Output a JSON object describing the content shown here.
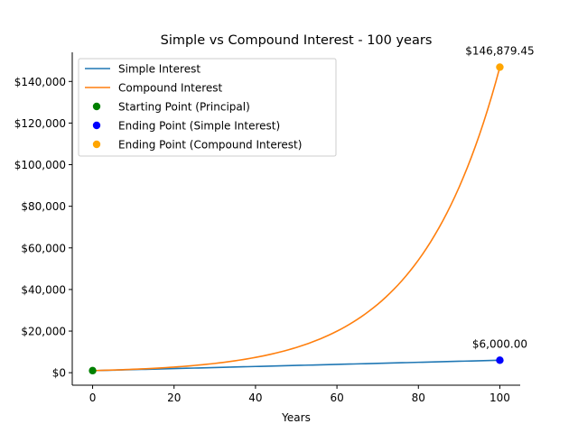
{
  "chart_data": {
    "type": "line",
    "title": "Simple vs Compound Interest - 100 years",
    "xlabel": "Years",
    "ylabel": "",
    "xlim": [
      -5,
      105
    ],
    "ylim": [
      -6000,
      154000
    ],
    "xticks": [
      0,
      20,
      40,
      60,
      80,
      100
    ],
    "xtick_labels": [
      "0",
      "20",
      "40",
      "60",
      "80",
      "100"
    ],
    "yticks": [
      0,
      20000,
      40000,
      60000,
      80000,
      100000,
      120000,
      140000
    ],
    "ytick_labels": [
      "$0",
      "$20,000",
      "$40,000",
      "$60,000",
      "$80,000",
      "$100,000",
      "$120,000",
      "$140,000"
    ],
    "grid": false,
    "legend_position": "top-left",
    "series": [
      {
        "name": "Simple Interest",
        "color": "#1f77b4",
        "kind": "line",
        "x": [
          0,
          10,
          20,
          30,
          40,
          50,
          60,
          70,
          80,
          90,
          100
        ],
        "values": [
          1000,
          1500,
          2000,
          2500,
          3000,
          3500,
          4000,
          4500,
          5000,
          5500,
          6000
        ]
      },
      {
        "name": "Compound Interest",
        "color": "#ff7f0e",
        "kind": "line",
        "x": [
          0,
          10,
          20,
          30,
          40,
          50,
          60,
          70,
          80,
          90,
          100
        ],
        "values": [
          1000,
          1647,
          2712,
          4468,
          7358,
          12119,
          19959,
          32873,
          54140,
          89169,
          146879.45
        ]
      }
    ],
    "points": [
      {
        "name": "Starting Point (Principal)",
        "color": "#008000",
        "x": 0,
        "y": 1000,
        "label": ""
      },
      {
        "name": "Ending Point (Simple Interest)",
        "color": "#0000ff",
        "x": 100,
        "y": 6000,
        "label": "$6,000.00"
      },
      {
        "name": "Ending Point (Compound Interest)",
        "color": "#ffa500",
        "x": 100,
        "y": 146879.45,
        "label": "$146,879.45"
      }
    ]
  }
}
